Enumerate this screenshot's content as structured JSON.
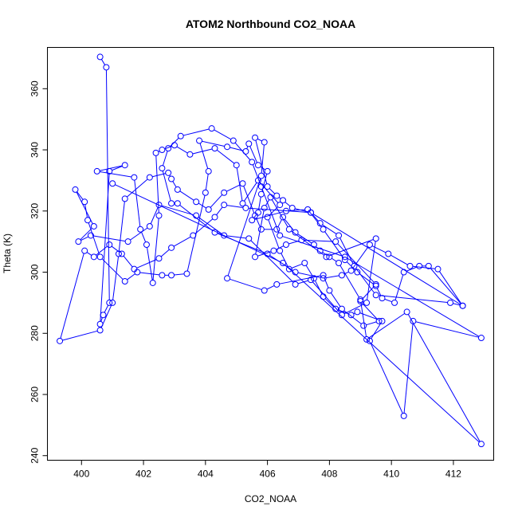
{
  "chart_data": {
    "type": "scatter",
    "title": "ATOM2 Northbound CO2_NOAA",
    "xlabel": "CO2_NOAA",
    "ylabel": "Theta (K)",
    "xlim": [
      398.9,
      413.3
    ],
    "ylim": [
      238.5,
      373.5
    ],
    "xticks": [
      400,
      402,
      404,
      406,
      408,
      410,
      412
    ],
    "yticks": [
      240,
      260,
      280,
      300,
      320,
      340,
      360
    ],
    "grid": false,
    "legend": "none",
    "style": "points connected by lines",
    "color": "#0000ff",
    "points": [
      [
        400.6,
        370.4
      ],
      [
        400.8,
        367
      ],
      [
        400.9,
        290
      ],
      [
        400.7,
        286
      ],
      [
        400.6,
        283
      ],
      [
        400.9,
        333
      ],
      [
        401.4,
        335
      ],
      [
        400.5,
        333
      ],
      [
        401.7,
        331
      ],
      [
        401.9,
        314
      ],
      [
        402.1,
        309
      ],
      [
        402.3,
        296.5
      ],
      [
        402.5,
        318.5
      ],
      [
        402.4,
        339
      ],
      [
        402.6,
        340
      ],
      [
        403.0,
        341.5
      ],
      [
        403.5,
        338.5
      ],
      [
        404.3,
        340.5
      ],
      [
        405.0,
        335
      ],
      [
        405.2,
        322.5
      ],
      [
        405.7,
        330
      ],
      [
        406.4,
        322
      ],
      [
        406.0,
        318
      ],
      [
        406.4,
        307
      ],
      [
        406.7,
        301
      ],
      [
        407.2,
        303
      ],
      [
        407.5,
        298
      ],
      [
        407.8,
        292
      ],
      [
        408.2,
        288
      ],
      [
        408.7,
        286
      ],
      [
        408.9,
        287
      ],
      [
        409.7,
        284
      ],
      [
        409.3,
        277.5
      ],
      [
        410.4,
        253
      ],
      [
        410.7,
        284
      ],
      [
        412.9,
        278.5
      ],
      [
        408.5,
        305
      ],
      [
        406.4,
        312
      ],
      [
        405.8,
        328
      ],
      [
        405.5,
        336
      ],
      [
        404.9,
        343
      ],
      [
        404.2,
        347
      ],
      [
        403.2,
        344.5
      ],
      [
        402.8,
        340.5
      ],
      [
        402.6,
        334
      ],
      [
        402.9,
        322.5
      ],
      [
        403.1,
        322.5
      ],
      [
        404.3,
        313
      ],
      [
        406.0,
        306
      ],
      [
        406.9,
        300
      ],
      [
        407.8,
        298
      ],
      [
        408.4,
        299
      ],
      [
        408.7,
        300.5
      ],
      [
        409.3,
        309
      ],
      [
        409.9,
        306
      ],
      [
        410.6,
        302
      ],
      [
        411.5,
        301
      ],
      [
        412.3,
        289
      ],
      [
        411.9,
        290
      ],
      [
        409.5,
        292.5
      ],
      [
        408.8,
        302
      ],
      [
        408.3,
        312
      ],
      [
        407.7,
        316
      ],
      [
        407.4,
        319.5
      ],
      [
        406.8,
        321
      ],
      [
        406.5,
        323.5
      ],
      [
        406.3,
        325
      ],
      [
        406.0,
        328
      ],
      [
        405.6,
        344
      ],
      [
        405.9,
        342.5
      ],
      [
        405.8,
        331.5
      ],
      [
        404.7,
        298
      ],
      [
        405.9,
        294
      ],
      [
        406.3,
        296
      ],
      [
        407.8,
        299
      ],
      [
        408.0,
        294
      ],
      [
        408.4,
        288
      ],
      [
        409.1,
        282.5
      ],
      [
        409.6,
        284
      ],
      [
        409.0,
        290.5
      ],
      [
        409.5,
        296
      ],
      [
        408.2,
        310
      ],
      [
        407.1,
        310.5
      ],
      [
        406.6,
        309
      ],
      [
        406.2,
        307
      ],
      [
        405.6,
        305
      ],
      [
        405.9,
        321
      ],
      [
        406.1,
        324.5
      ],
      [
        406.7,
        314
      ],
      [
        407.9,
        305
      ],
      [
        409.5,
        311
      ],
      [
        409.2,
        290
      ],
      [
        408.4,
        286
      ],
      [
        407.4,
        297.5
      ],
      [
        406.9,
        296
      ],
      [
        405.4,
        311
      ],
      [
        404.6,
        312
      ],
      [
        403.7,
        318.5
      ],
      [
        402.5,
        322
      ],
      [
        402.2,
        315
      ],
      [
        401.5,
        310
      ],
      [
        400.3,
        312
      ],
      [
        399.9,
        310
      ],
      [
        400.4,
        315
      ],
      [
        399.8,
        327
      ],
      [
        400.1,
        323
      ],
      [
        400.2,
        317
      ],
      [
        400.6,
        305
      ],
      [
        401.4,
        297
      ],
      [
        401.8,
        300
      ],
      [
        402.6,
        299
      ],
      [
        402.9,
        299
      ],
      [
        403.4,
        299.5
      ],
      [
        404.0,
        326
      ],
      [
        404.1,
        333
      ],
      [
        403.8,
        343
      ],
      [
        404.7,
        341
      ],
      [
        405.3,
        339.5
      ],
      [
        405.4,
        342
      ],
      [
        405.7,
        335
      ],
      [
        406.0,
        333
      ],
      [
        405.8,
        325.5
      ],
      [
        405.7,
        319.5
      ],
      [
        405.5,
        317
      ],
      [
        406.6,
        320
      ],
      [
        407.3,
        320.5
      ],
      [
        407.8,
        314
      ],
      [
        408.5,
        304
      ],
      [
        408.9,
        300
      ],
      [
        409.5,
        295.5
      ],
      [
        409.7,
        291.5
      ],
      [
        410.1,
        290
      ],
      [
        410.4,
        300
      ],
      [
        410.9,
        302
      ],
      [
        411.2,
        302
      ],
      [
        412.3,
        289
      ],
      [
        407.4,
        319.5
      ],
      [
        405.3,
        321
      ],
      [
        404.6,
        322
      ],
      [
        404.3,
        318
      ],
      [
        403.6,
        312
      ],
      [
        402.9,
        308
      ],
      [
        402.5,
        304.5
      ],
      [
        401.7,
        301
      ],
      [
        401.3,
        306
      ],
      [
        400.9,
        309
      ],
      [
        400.4,
        305
      ],
      [
        400.1,
        307
      ],
      [
        399.3,
        277.5
      ],
      [
        400.6,
        281
      ],
      [
        401.0,
        290
      ],
      [
        401.2,
        306
      ],
      [
        401.4,
        324
      ],
      [
        402.2,
        331
      ],
      [
        402.8,
        332.5
      ],
      [
        402.9,
        330.5
      ],
      [
        403.1,
        327
      ],
      [
        403.7,
        323
      ],
      [
        404.1,
        320.5
      ],
      [
        404.6,
        326
      ],
      [
        405.2,
        329
      ],
      [
        405.6,
        318.5
      ],
      [
        405.8,
        314
      ],
      [
        406.3,
        314
      ],
      [
        406.5,
        318
      ],
      [
        406.9,
        313
      ],
      [
        407.5,
        309
      ],
      [
        407.7,
        307
      ],
      [
        408.0,
        305
      ],
      [
        408.3,
        303
      ],
      [
        409.0,
        291
      ],
      [
        409.2,
        278
      ],
      [
        410.5,
        287
      ],
      [
        412.9,
        243.8
      ],
      [
        406.5,
        303
      ],
      [
        401.0,
        329
      ]
    ]
  }
}
